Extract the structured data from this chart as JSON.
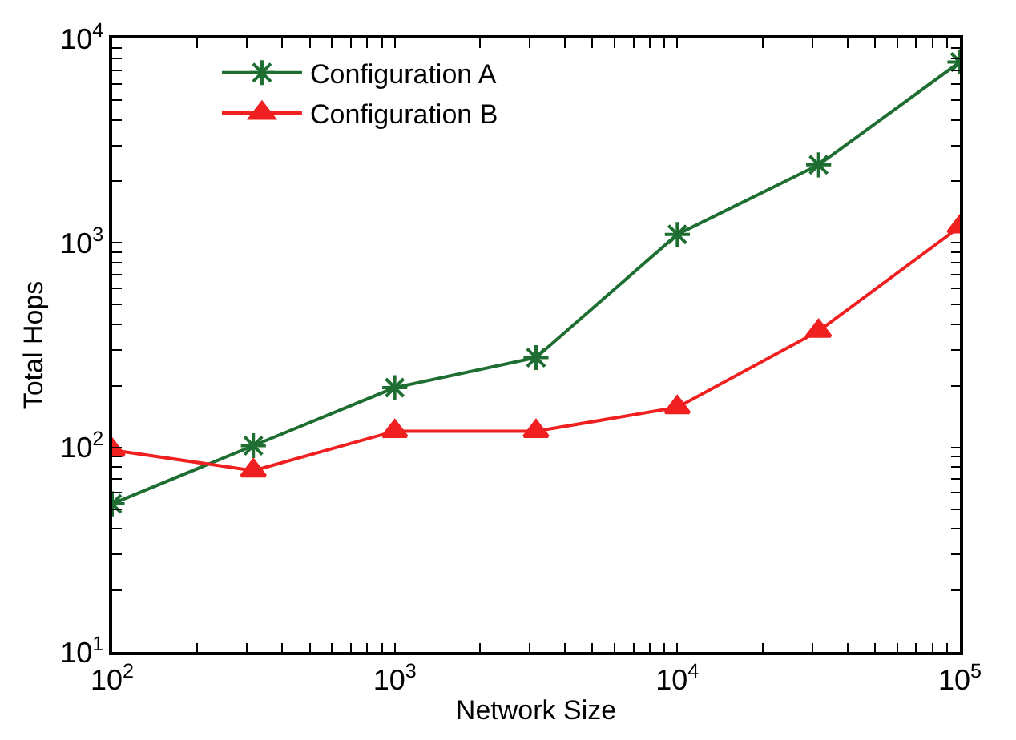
{
  "chart_data": {
    "type": "line",
    "xlabel": "Network Size",
    "ylabel": "Total Hops",
    "log": "xy",
    "x": [
      100,
      316,
      1000,
      3162,
      10000,
      31623,
      100000
    ],
    "series": [
      {
        "name": "Configuration A",
        "color": "#1e6e32",
        "marker": "cross",
        "values": [
          53,
          102,
          196,
          275,
          1100,
          2410,
          7670
        ]
      },
      {
        "name": "Configuration B",
        "color": "#f02020",
        "marker": "triangle",
        "values": [
          97,
          77,
          120,
          120,
          157,
          371,
          1200
        ]
      }
    ],
    "xlim": [
      100,
      100000
    ],
    "ylim": [
      10,
      10000
    ],
    "xticks": [
      {
        "value": 100,
        "label": "10$^{2}$"
      },
      {
        "value": 200,
        "label": null
      },
      {
        "value": 300,
        "label": null
      },
      {
        "value": 400,
        "label": null
      },
      {
        "value": 500,
        "label": null
      },
      {
        "value": 600,
        "label": null
      },
      {
        "value": 700,
        "label": null
      },
      {
        "value": 800,
        "label": null
      },
      {
        "value": 900,
        "label": null
      },
      {
        "value": 1000,
        "label": "10$^{3}$"
      },
      {
        "value": 2000,
        "label": null
      },
      {
        "value": 3000,
        "label": null
      },
      {
        "value": 4000,
        "label": null
      },
      {
        "value": 5000,
        "label": null
      },
      {
        "value": 6000,
        "label": null
      },
      {
        "value": 7000,
        "label": null
      },
      {
        "value": 8000,
        "label": null
      },
      {
        "value": 9000,
        "label": null
      },
      {
        "value": 10000,
        "label": "10$^{4}$"
      },
      {
        "value": 20000,
        "label": null
      },
      {
        "value": 30000,
        "label": null
      },
      {
        "value": 40000,
        "label": null
      },
      {
        "value": 50000,
        "label": null
      },
      {
        "value": 60000,
        "label": null
      },
      {
        "value": 70000,
        "label": null
      },
      {
        "value": 80000,
        "label": null
      },
      {
        "value": 90000,
        "label": null
      },
      {
        "value": 100000,
        "label": "10$^{5}$"
      }
    ],
    "yticks": [
      {
        "value": 10,
        "label": "10$^{1}$"
      },
      {
        "value": 20,
        "label": null
      },
      {
        "value": 30,
        "label": null
      },
      {
        "value": 40,
        "label": null
      },
      {
        "value": 50,
        "label": null
      },
      {
        "value": 60,
        "label": null
      },
      {
        "value": 70,
        "label": null
      },
      {
        "value": 80,
        "label": null
      },
      {
        "value": 90,
        "label": null
      },
      {
        "value": 100,
        "label": "10$^{2}$"
      },
      {
        "value": 200,
        "label": null
      },
      {
        "value": 300,
        "label": null
      },
      {
        "value": 400,
        "label": null
      },
      {
        "value": 500,
        "label": null
      },
      {
        "value": 600,
        "label": null
      },
      {
        "value": 700,
        "label": null
      },
      {
        "value": 800,
        "label": null
      },
      {
        "value": 900,
        "label": null
      },
      {
        "value": 1000,
        "label": "10$^{3}$"
      },
      {
        "value": 2000,
        "label": null
      },
      {
        "value": 3000,
        "label": null
      },
      {
        "value": 4000,
        "label": null
      },
      {
        "value": 5000,
        "label": null
      },
      {
        "value": 6000,
        "label": null
      },
      {
        "value": 7000,
        "label": null
      },
      {
        "value": 8000,
        "label": null
      },
      {
        "value": 9000,
        "label": null
      },
      {
        "value": 10000,
        "label": "10$^{4}$"
      }
    ],
    "legend": "top left"
  }
}
